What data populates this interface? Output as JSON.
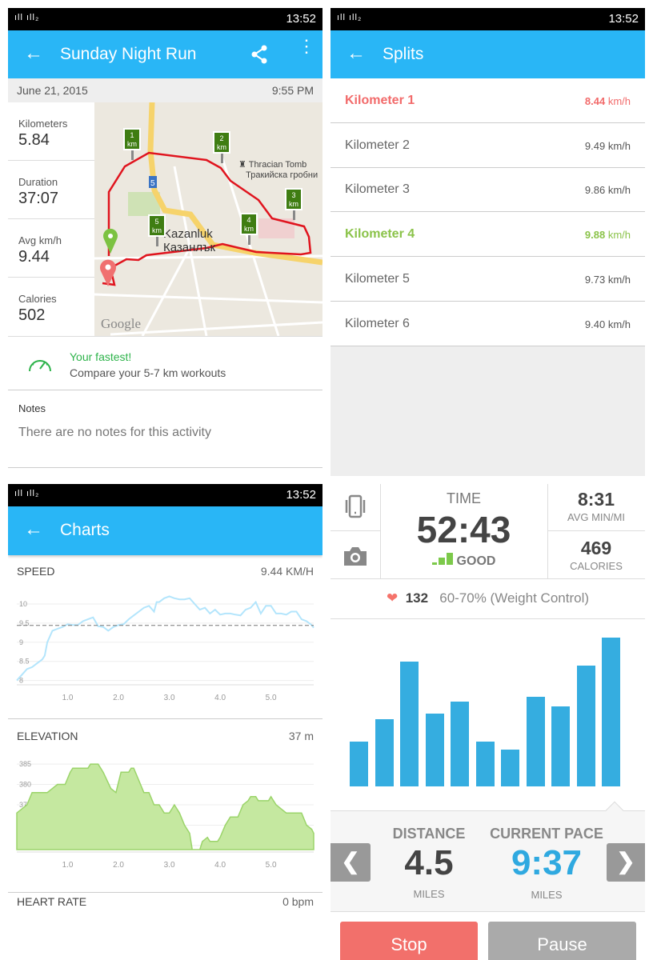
{
  "status_bar": {
    "signal": "ıll ıll₂",
    "time": "13:52"
  },
  "activity": {
    "title": "Sunday Night Run",
    "date": "June 21, 2015",
    "time": "9:55 PM",
    "stats": [
      {
        "label": "Kilometers",
        "value": "5.84"
      },
      {
        "label": "Duration",
        "value": "37:07"
      },
      {
        "label": "Avg km/h",
        "value": "9.44"
      },
      {
        "label": "Calories",
        "value": "502"
      }
    ],
    "map": {
      "markers": [
        "1\nkm",
        "2\nkm",
        "3\nkm",
        "4\nkm",
        "5\nkm"
      ],
      "marker_labels": [
        "1",
        "2",
        "3",
        "4",
        "5"
      ],
      "km_unit": "km",
      "poi_en": "Thracian Tomb",
      "poi_bg": "Тракийска гробни",
      "city_en": "Kazanluk",
      "city_bg": "Казанлък",
      "road": "5",
      "attribution": "Google"
    },
    "fastest": {
      "title": "Your fastest!",
      "subtitle": "Compare your 5-7 km workouts"
    },
    "notes": {
      "label": "Notes",
      "text": "There are no notes for this activity"
    },
    "colors": {
      "accent": "#29b6f6",
      "route": "#e0141e",
      "fastest": "#2db34a"
    }
  },
  "splits": {
    "title": "Splits",
    "unit": "km/h",
    "rows": [
      {
        "label": "Kilometer 1",
        "speed": "8.44",
        "highlight": "slowest"
      },
      {
        "label": "Kilometer 2",
        "speed": "9.49"
      },
      {
        "label": "Kilometer 3",
        "speed": "9.86"
      },
      {
        "label": "Kilometer 4",
        "speed": "9.88",
        "highlight": "fastest"
      },
      {
        "label": "Kilometer 5",
        "speed": "9.73"
      },
      {
        "label": "Kilometer 6",
        "speed": "9.40"
      }
    ],
    "colors": {
      "slowest": "#f26b6b",
      "fastest": "#8bc34a"
    }
  },
  "charts": {
    "title": "Charts",
    "heart_rate": {
      "title": "HEART RATE",
      "value": "0 bpm"
    }
  },
  "chart_data": [
    {
      "type": "line",
      "title": "SPEED",
      "value_label": "9.44 KM/H",
      "average": 9.44,
      "xlim": [
        0,
        5.84
      ],
      "ylim": [
        7.95,
        10.25
      ],
      "x_ticks": [
        "1.0",
        "2.0",
        "3.0",
        "4.0",
        "5.0"
      ],
      "y_ticks": [
        "8",
        "8.5",
        "9",
        "9.5",
        "10"
      ],
      "color": "#b3e5fc",
      "grid": true,
      "x": [
        0,
        0.1,
        0.2,
        0.3,
        0.4,
        0.5,
        0.55,
        0.6,
        0.7,
        0.8,
        0.9,
        1.0,
        1.1,
        1.2,
        1.3,
        1.4,
        1.5,
        1.6,
        1.7,
        1.8,
        1.9,
        2.0,
        2.1,
        2.2,
        2.3,
        2.4,
        2.5,
        2.6,
        2.7,
        2.75,
        2.8,
        2.9,
        3.0,
        3.1,
        3.2,
        3.3,
        3.4,
        3.5,
        3.6,
        3.7,
        3.8,
        3.9,
        4.0,
        4.1,
        4.2,
        4.3,
        4.4,
        4.5,
        4.6,
        4.7,
        4.8,
        4.9,
        5.0,
        5.1,
        5.2,
        5.3,
        5.4,
        5.5,
        5.6,
        5.7,
        5.8,
        5.84
      ],
      "y": [
        8.0,
        8.15,
        8.3,
        8.35,
        8.45,
        8.55,
        8.65,
        9.0,
        9.3,
        9.35,
        9.4,
        9.47,
        9.45,
        9.45,
        9.55,
        9.6,
        9.65,
        9.42,
        9.4,
        9.3,
        9.4,
        9.45,
        9.47,
        9.6,
        9.7,
        9.8,
        9.9,
        9.95,
        9.8,
        10.05,
        10.05,
        10.15,
        10.2,
        10.15,
        10.12,
        10.12,
        10.15,
        10.0,
        9.85,
        9.9,
        9.75,
        9.85,
        9.72,
        9.75,
        9.75,
        9.72,
        9.7,
        9.85,
        9.9,
        10.05,
        9.75,
        9.95,
        9.95,
        9.75,
        9.75,
        9.72,
        9.8,
        9.8,
        9.6,
        9.55,
        9.45,
        9.38
      ]
    },
    {
      "type": "area",
      "title": "ELEVATION",
      "value_label": "37 m",
      "xlim": [
        0,
        5.84
      ],
      "ylim": [
        364,
        386
      ],
      "x_ticks": [
        "1.0",
        "2.0",
        "3.0",
        "4.0",
        "5.0"
      ],
      "y_ticks": [
        "365",
        "370",
        "375",
        "380",
        "385"
      ],
      "color": "#c5e8a0",
      "grid": true,
      "x": [
        0,
        0.1,
        0.2,
        0.3,
        0.6,
        0.7,
        0.8,
        0.95,
        1.05,
        1.1,
        1.4,
        1.45,
        1.6,
        1.7,
        1.85,
        1.95,
        2.05,
        2.2,
        2.25,
        2.3,
        2.4,
        2.5,
        2.6,
        2.7,
        2.8,
        2.9,
        3.0,
        3.05,
        3.1,
        3.2,
        3.3,
        3.4,
        3.45,
        3.6,
        3.65,
        3.75,
        3.8,
        3.95,
        4.0,
        4.1,
        4.2,
        4.35,
        4.45,
        4.55,
        4.6,
        4.7,
        4.75,
        4.95,
        5.0,
        5.1,
        5.2,
        5.3,
        5.6,
        5.7,
        5.8,
        5.84
      ],
      "y": [
        373,
        374,
        375,
        378,
        378,
        379,
        380,
        380,
        383,
        384,
        384,
        385,
        385,
        383,
        379,
        378,
        383,
        383,
        384,
        384,
        381,
        378,
        378,
        375,
        375,
        373,
        373,
        374,
        375,
        373,
        370,
        368,
        364,
        364,
        366,
        367,
        366,
        366,
        367,
        370,
        372,
        372,
        375,
        376,
        377,
        377,
        376,
        376,
        377,
        375,
        374,
        373,
        373,
        370,
        369,
        368
      ]
    }
  ],
  "tracker": {
    "time_label": "TIME",
    "time": "52:43",
    "gps": "GOOD",
    "avg_pace": "8:31",
    "avg_pace_label": "AVG MIN/MI",
    "calories": "469",
    "calories_label": "CALORIES",
    "heart_rate": "132",
    "zone": "60-70% (Weight Control)",
    "bar_levels_percent": [
      30,
      45,
      84,
      49,
      57,
      30,
      25,
      60,
      54,
      81,
      100
    ],
    "distance_label": "DISTANCE",
    "distance": "4.5",
    "distance_unit": "MILES",
    "pace_label": "CURRENT PACE",
    "pace": "9:37",
    "pace_unit": "MILES",
    "stop": "Stop",
    "pause": "Pause",
    "prev": "❮",
    "next": "❯",
    "colors": {
      "bars": "#35ade0",
      "pace": "#2fa9e0",
      "stop": "#f2706b",
      "pause": "#aaa",
      "heart": "#f5736b",
      "gps": "#7cc94a"
    }
  }
}
